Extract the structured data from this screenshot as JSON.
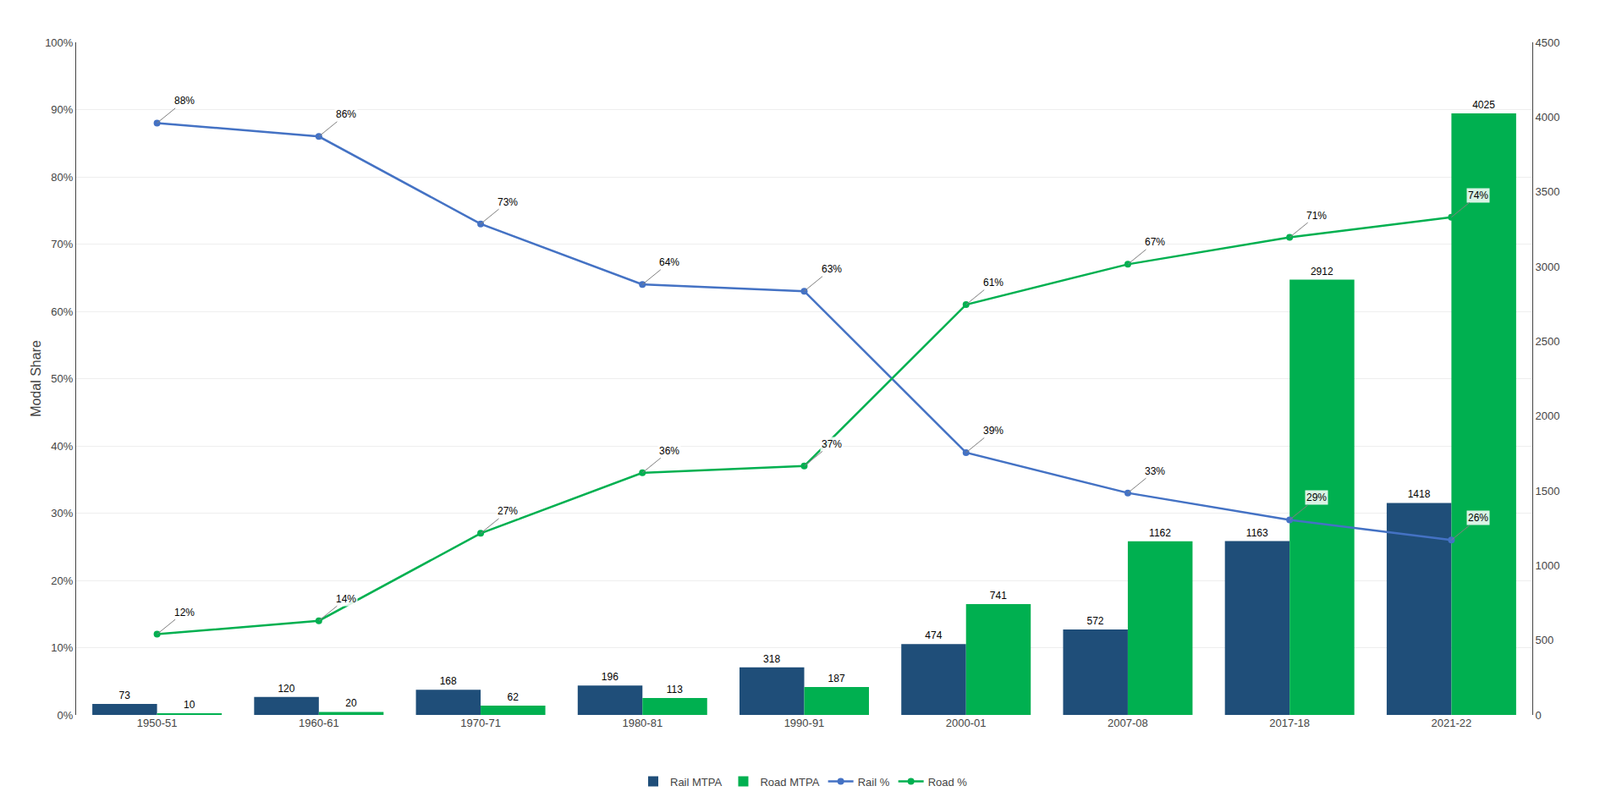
{
  "chart_data": {
    "type": "bar",
    "categories": [
      "1950-51",
      "1960-61",
      "1970-71",
      "1980-81",
      "1990-91",
      "2000-01",
      "2007-08",
      "2017-18",
      "2021-22"
    ],
    "series": [
      {
        "name": "Rail MTPA",
        "type": "bar",
        "axis": "y2",
        "color": "#1F4E79",
        "values": [
          73,
          120,
          168,
          196,
          318,
          474,
          572,
          1163,
          1418
        ]
      },
      {
        "name": "Road MTPA",
        "type": "bar",
        "axis": "y2",
        "color": "#00B050",
        "values": [
          10,
          20,
          62,
          113,
          187,
          741,
          1162,
          2912,
          4025
        ]
      },
      {
        "name": "Rail %",
        "type": "line",
        "axis": "y",
        "color": "#4472C4",
        "marker": "circle",
        "values": [
          88,
          86,
          73,
          64,
          63,
          39,
          33,
          29,
          26
        ],
        "value_labels": [
          "88%",
          "86%",
          "73%",
          "64%",
          "63%",
          "39%",
          "33%",
          "29%",
          "26%"
        ]
      },
      {
        "name": "Road %",
        "type": "line",
        "axis": "y",
        "color": "#00B050",
        "marker": "circle",
        "values": [
          12,
          14,
          27,
          36,
          37,
          61,
          67,
          71,
          74
        ],
        "value_labels": [
          "12%",
          "14%",
          "27%",
          "36%",
          "37%",
          "61%",
          "67%",
          "71%",
          "74%"
        ]
      }
    ],
    "ylabel": "Modal Share",
    "ylim": [
      0,
      100
    ],
    "yticks": [
      {
        "value": 0,
        "label": "0%"
      },
      {
        "value": 10,
        "label": "10%"
      },
      {
        "value": 20,
        "label": "20%"
      },
      {
        "value": 30,
        "label": "30%"
      },
      {
        "value": 40,
        "label": "40%"
      },
      {
        "value": 50,
        "label": "50%"
      },
      {
        "value": 60,
        "label": "60%"
      },
      {
        "value": 70,
        "label": "70%"
      },
      {
        "value": 80,
        "label": "80%"
      },
      {
        "value": 90,
        "label": "90%"
      },
      {
        "value": 100,
        "label": "100%"
      }
    ],
    "y2lim": [
      0,
      4500
    ],
    "y2ticks": [
      0,
      500,
      1000,
      1500,
      2000,
      2500,
      3000,
      3500,
      4000,
      4500
    ],
    "grid": true,
    "legend": "bottom",
    "data_labels": true
  }
}
